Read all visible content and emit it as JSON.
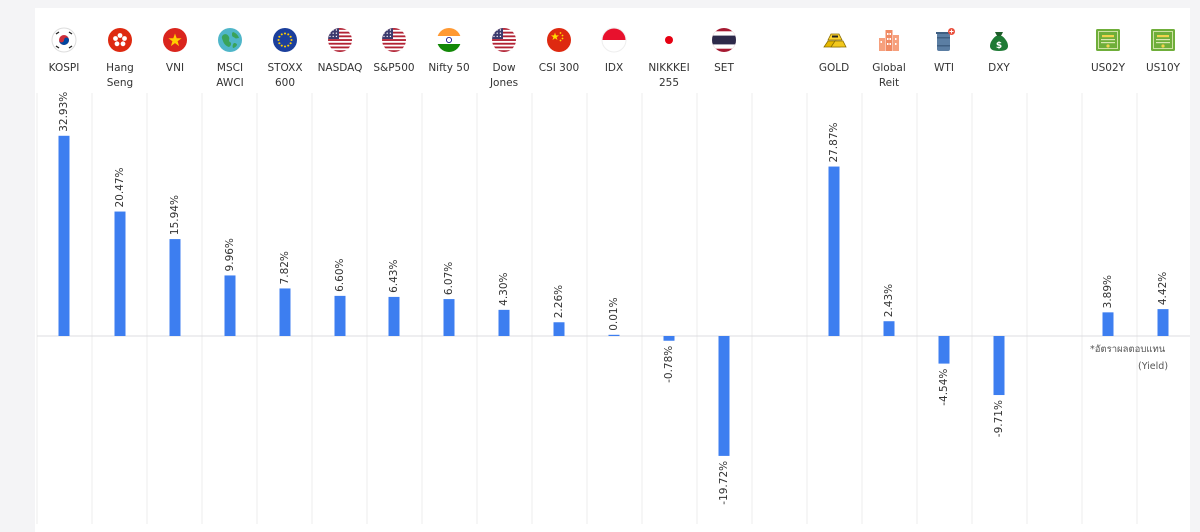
{
  "chart_data": {
    "type": "bar",
    "unit": "%",
    "categories": [
      "KOSPI",
      "Hang Seng",
      "VNI",
      "MSCI AWCI",
      "STOXX 600",
      "NASDAQ",
      "S&P500",
      "Nifty 50",
      "Dow Jones",
      "CSI 300",
      "IDX",
      "NIKKKEI 255",
      "SET",
      "GOLD",
      "Global Reit",
      "WTI",
      "DXY",
      "US02Y",
      "US10Y"
    ],
    "category_display": [
      "KOSPI",
      "Hang\nSeng",
      "VNI",
      "MSCI\nAWCI",
      "STOXX\n600",
      "NASDAQ",
      "S&P500",
      "Nifty 50",
      "Dow\nJones",
      "CSI 300",
      "IDX",
      "NIKKKEI\n255",
      "SET",
      "GOLD",
      "Global\nReit",
      "WTI",
      "DXY",
      "US02Y",
      "US10Y"
    ],
    "values": [
      32.93,
      20.47,
      15.94,
      9.96,
      7.82,
      6.6,
      6.43,
      6.07,
      4.3,
      2.26,
      0.01,
      -0.78,
      -19.72,
      27.87,
      2.43,
      -4.54,
      -9.71,
      3.89,
      4.42
    ],
    "value_labels": [
      "32.93%",
      "20.47%",
      "15.94%",
      "9.96%",
      "7.82%",
      "6.60%",
      "6.43%",
      "6.07%",
      "4.30%",
      "2.26%",
      "0.01%",
      "-0.78%",
      "-19.72%",
      "27.87%",
      "2.43%",
      "-4.54%",
      "-9.71%",
      "3.89%",
      "4.42%"
    ],
    "bar_color": "#3d7ef0",
    "grid": true,
    "ylim": [
      -32,
      33
    ],
    "annotation": [
      "*อัตราผลตอบแทน",
      "(Yield)"
    ]
  },
  "icons": [
    "south-korea-flag-icon",
    "hong-kong-flag-icon",
    "vietnam-flag-icon",
    "globe-icon",
    "eu-flag-icon",
    "usa-flag-icon",
    "usa-flag-icon",
    "india-flag-icon",
    "usa-flag-icon",
    "china-flag-icon",
    "indonesia-flag-icon",
    "japan-flag-icon",
    "thailand-flag-icon",
    "gold-bars-icon",
    "buildings-icon",
    "oil-barrel-icon",
    "money-bag-icon",
    "bond-certificate-icon",
    "bond-certificate-icon"
  ]
}
